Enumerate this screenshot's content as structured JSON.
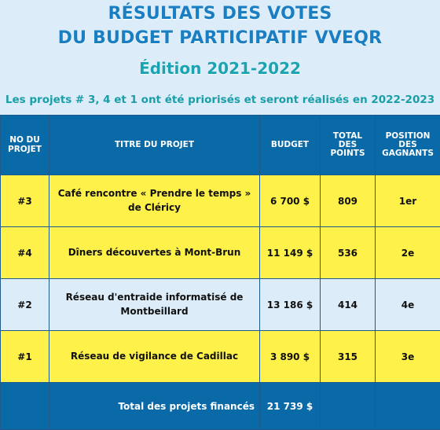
{
  "header": {
    "line1": "RÉSULTATS DES VOTES",
    "line2": "DU BUDGET PARTICIPATIF VVEQR",
    "edition": "Édition 2021-2022",
    "subtitle": "Les projets # 3, 4 et 1 ont été priorisés et seront réalisés en 2022-2023"
  },
  "columns": {
    "no": "NO DU PROJET",
    "title": "TITRE DU PROJET",
    "budget": "BUDGET",
    "points": "TOTAL DES POINTS",
    "position": "POSITION DES GAGNANTS"
  },
  "rows": [
    {
      "no": "#3",
      "title": "Café rencontre « Prendre le temps » de Cléricy",
      "budget": "6 700 $",
      "points": "809",
      "position": "1er"
    },
    {
      "no": "#4",
      "title": "Dîners découvertes à Mont-Brun",
      "budget": "11 149 $",
      "points": "536",
      "position": "2e"
    },
    {
      "no": "#2",
      "title": "Réseau d'entraide informatisé de Montbeillard",
      "budget": "13 186 $",
      "points": "414",
      "position": "4e"
    },
    {
      "no": "#1",
      "title": "Réseau de vigilance de Cadillac",
      "budget": "3 890 $",
      "points": "315",
      "position": "3e"
    }
  ],
  "total": {
    "label": "Total des projets financés",
    "budget": "21 739 $"
  },
  "colors": {
    "header_blue": "#0a6aa8",
    "highlight_yellow": "#fef14a",
    "light_blue": "#dcecf8",
    "title_blue": "#1a7fc2",
    "teal": "#1a9ea8"
  }
}
